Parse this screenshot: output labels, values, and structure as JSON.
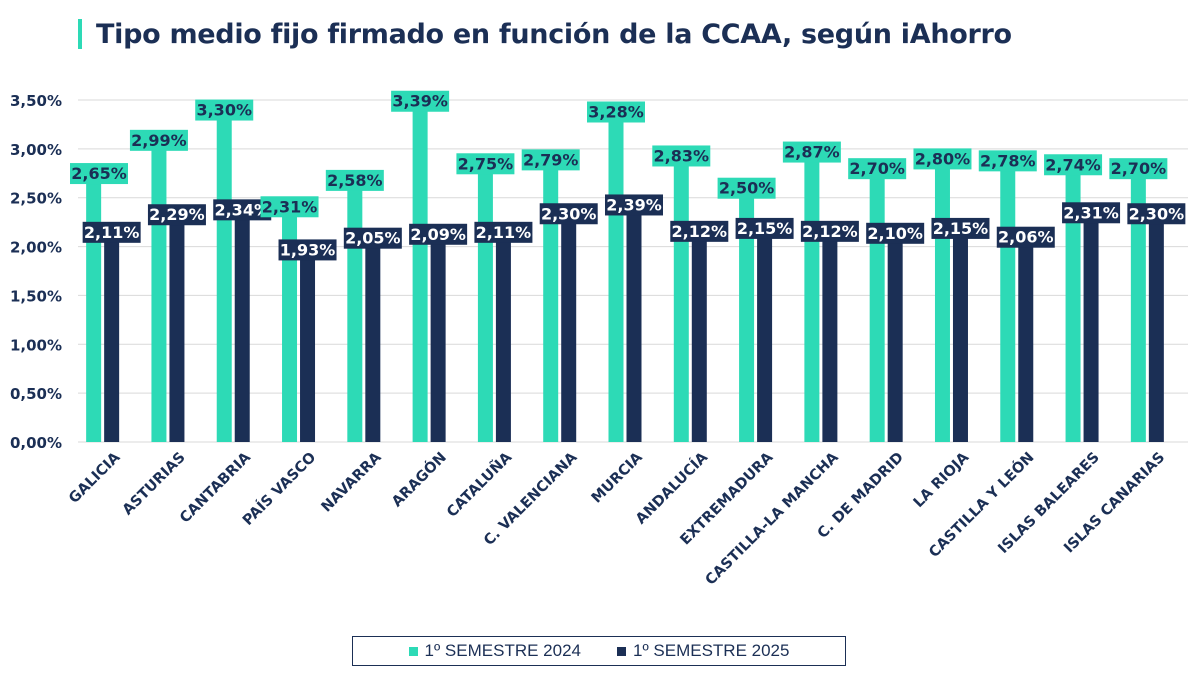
{
  "title": "Tipo medio fijo firmado en función de la CCAA, según iAhorro",
  "colors": {
    "accent": "#2ddab6",
    "series1": "#2ddab6",
    "series2": "#1b2f55",
    "text": "#1b2f55",
    "grid": "#d9d9d9"
  },
  "legend": [
    {
      "label": "1º SEMESTRE 2024",
      "color": "#2ddab6"
    },
    {
      "label": "1º SEMESTRE 2025",
      "color": "#1b2f55"
    }
  ],
  "chart_data": {
    "type": "bar",
    "title": "Tipo medio fijo firmado en función de la CCAA, según iAhorro",
    "categories": [
      "GALICIA",
      "ASTURIAS",
      "CANTABRIA",
      "PAÍS VASCO",
      "NAVARRA",
      "ARAGÓN",
      "CATALUÑA",
      "C. VALENCIANA",
      "MURCIA",
      "ANDALUCÍA",
      "EXTREMADURA",
      "CASTILLA-LA MANCHA",
      "C. DE MADRID",
      "LA RIOJA",
      "CASTILLA Y LEÓN",
      "ISLAS BALEARES",
      "ISLAS CANARIAS"
    ],
    "series": [
      {
        "name": "1º SEMESTRE 2024",
        "values": [
          2.65,
          2.99,
          3.3,
          2.31,
          2.58,
          3.39,
          2.75,
          2.79,
          3.28,
          2.83,
          2.5,
          2.87,
          2.7,
          2.8,
          2.78,
          2.74,
          2.7
        ],
        "labels": [
          "2,65%",
          "2,99%",
          "3,30%",
          "2,31%",
          "2,58%",
          "3,39%",
          "2,75%",
          "2,79%",
          "3,28%",
          "2,83%",
          "2,50%",
          "2,87%",
          "2,70%",
          "2,80%",
          "2,78%",
          "2,74%",
          "2,70%"
        ]
      },
      {
        "name": "1º SEMESTRE 2025",
        "values": [
          2.11,
          2.29,
          2.34,
          1.93,
          2.05,
          2.09,
          2.11,
          2.3,
          2.39,
          2.12,
          2.15,
          2.12,
          2.1,
          2.15,
          2.06,
          2.31,
          2.3
        ],
        "labels": [
          "2,11%",
          "2,29%",
          "2,34%",
          "1,93%",
          "2,05%",
          "2,09%",
          "2,11%",
          "2,30%",
          "2,39%",
          "2,12%",
          "2,15%",
          "2,12%",
          "2,10%",
          "2,15%",
          "2,06%",
          "2,31%",
          "2,30%"
        ]
      }
    ],
    "ylim": [
      0,
      3.5
    ],
    "yticks": [
      0,
      0.5,
      1.0,
      1.5,
      2.0,
      2.5,
      3.0,
      3.5
    ],
    "ytick_labels": [
      "0,00%",
      "0,50%",
      "1,00%",
      "1,50%",
      "2,00%",
      "2,50%",
      "3,00%",
      "3,50%"
    ],
    "grid": true,
    "legend_position": "bottom"
  }
}
